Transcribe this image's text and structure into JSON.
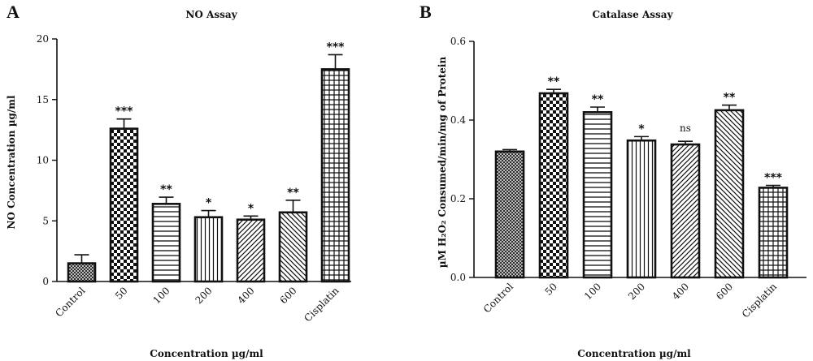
{
  "chart_data": [
    {
      "type": "bar",
      "panel": "A",
      "title": "NO Assay",
      "xlabel": "Concentration µg/ml",
      "ylabel": "NO Concentration µg/ml",
      "ylim": [
        0,
        20
      ],
      "yticks": [
        "0",
        "5",
        "10",
        "15",
        "20"
      ],
      "categories": [
        "Control",
        "50",
        "100",
        "200",
        "400",
        "600",
        "Cisplatin"
      ],
      "values": [
        1.5,
        12.6,
        6.4,
        5.3,
        5.1,
        5.7,
        17.5
      ],
      "errors": [
        0.7,
        0.8,
        0.55,
        0.55,
        0.3,
        1.0,
        1.2
      ],
      "significance": [
        "",
        "***",
        "**",
        "*",
        "*",
        "**",
        "***"
      ],
      "patterns": [
        "crosshatch",
        "checker",
        "hlines",
        "vlines",
        "diag-up",
        "diag-down",
        "grid"
      ]
    },
    {
      "type": "bar",
      "panel": "B",
      "title": "Catalase Assay",
      "xlabel": "Concentration µg/ml",
      "ylabel": "µM H₂O₂ Consumed/min/mg of Protein",
      "ylim": [
        0,
        0.6
      ],
      "yticks": [
        "0.0",
        "0.2",
        "0.4",
        "0.6"
      ],
      "categories": [
        "Control",
        "50",
        "100",
        "200",
        "400",
        "600",
        "Cisplatin"
      ],
      "values": [
        0.32,
        0.468,
        0.42,
        0.348,
        0.338,
        0.425,
        0.228
      ],
      "errors": [
        0.005,
        0.01,
        0.013,
        0.01,
        0.008,
        0.013,
        0.006
      ],
      "significance": [
        "",
        "**",
        "**",
        "*",
        "ns",
        "**",
        "***"
      ],
      "patterns": [
        "crosshatch",
        "checker",
        "hlines",
        "vlines",
        "diag-up",
        "diag-down",
        "grid"
      ]
    }
  ]
}
